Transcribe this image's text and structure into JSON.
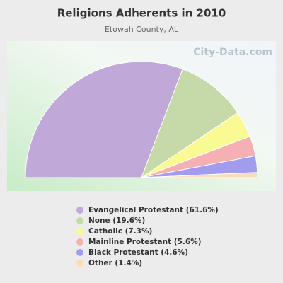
{
  "chart_data": {
    "type": "pie",
    "title": "Religions Adherents in 2010",
    "subtitle": "Etowah County, AL",
    "watermark": "City-Data.com",
    "categories": [
      "Evangelical Protestant (61.6%)",
      "None (19.6%)",
      "Catholic (7.3%)",
      "Mainline Protestant (5.6%)",
      "Black Protestant (4.6%)",
      "Other (1.4%)"
    ],
    "values": [
      61.6,
      19.6,
      7.3,
      5.6,
      4.6,
      1.4
    ],
    "colors": [
      "#c0a8d8",
      "#c6d9a8",
      "#fafa92",
      "#f4b0b2",
      "#a29cee",
      "#fadcb8"
    ]
  }
}
